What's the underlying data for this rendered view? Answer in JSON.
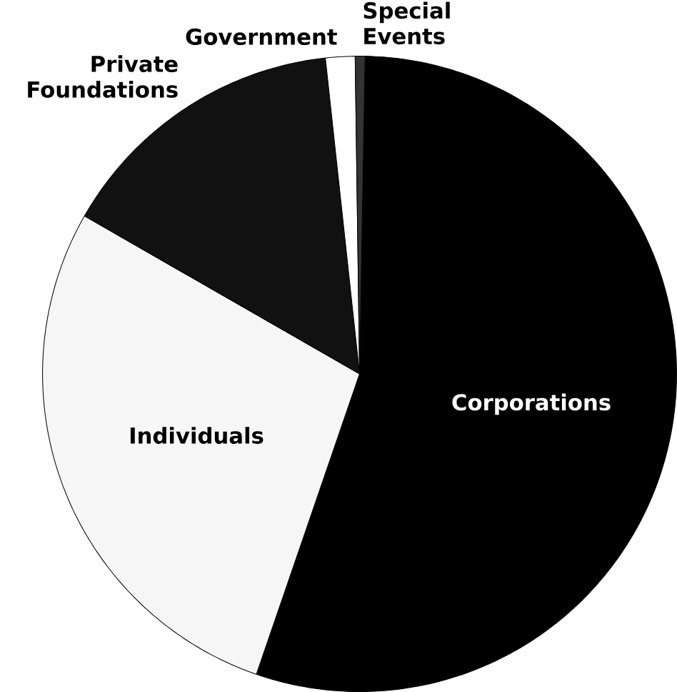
{
  "chart_data": {
    "type": "pie",
    "categories": [
      "Corporations",
      "Individuals",
      "Private Foundations",
      "Government",
      "Special Events"
    ],
    "values": [
      55,
      28,
      15,
      1.5,
      0.5
    ],
    "colors": [
      "#000000",
      "#f6f6f6",
      "#111111",
      "#ffffff",
      "#333333"
    ]
  }
}
